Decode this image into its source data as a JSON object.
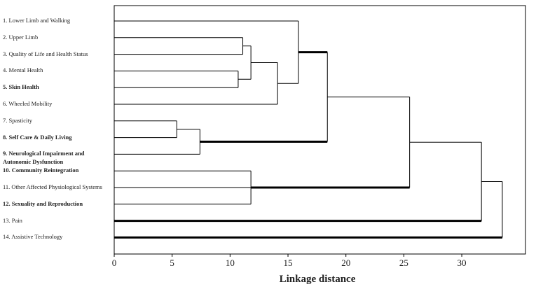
{
  "chart_data": {
    "type": "dendrogram",
    "x_label": "Linkage distance",
    "xlim": [
      0,
      35.5
    ],
    "xticks": [
      0,
      5,
      10,
      15,
      20,
      25,
      30
    ],
    "leaves": [
      {
        "label": "1. Lower Limb and Walking",
        "bold": false
      },
      {
        "label": "2. Upper Limb",
        "bold": false
      },
      {
        "label": "3. Quality of Life and Health Status",
        "bold": false
      },
      {
        "label": "4. Mental Health",
        "bold": false
      },
      {
        "label": "5. Skin Health",
        "bold": true
      },
      {
        "label": "6. Wheeled Mobility",
        "bold": false
      },
      {
        "label": "7. Spasticity",
        "bold": false
      },
      {
        "label": "8. Self Care & Daily Living",
        "bold": true
      },
      {
        "label": "9. Neurological Impairment and Autonomic Dysfunction",
        "bold": true
      },
      {
        "label": "10. Community Reintegration",
        "bold": true
      },
      {
        "label": "11. Other Affected Physiological Systems",
        "bold": false
      },
      {
        "label": "12. Sexuality and Reproduction",
        "bold": true
      },
      {
        "label": "13. Pain",
        "bold": false
      },
      {
        "label": "14. Assistive Technology",
        "bold": false
      }
    ],
    "merges": [
      {
        "children": [
          1,
          2
        ],
        "height": 11.1
      },
      {
        "children": [
          3,
          4
        ],
        "height": 10.7
      },
      {
        "children": [
          14,
          15
        ],
        "height": 11.8
      },
      {
        "children": [
          16,
          5
        ],
        "height": 14.1
      },
      {
        "children": [
          0,
          17
        ],
        "height": 15.9
      },
      {
        "children": [
          6,
          7
        ],
        "height": 5.4
      },
      {
        "children": [
          19,
          8
        ],
        "height": 7.4
      },
      {
        "children": [
          18,
          20
        ],
        "height": 18.4
      },
      {
        "children": [
          9,
          10,
          11
        ],
        "height": 11.8
      },
      {
        "children": [
          21,
          22
        ],
        "height": 25.5
      },
      {
        "children": [
          23,
          12
        ],
        "height": 31.7
      },
      {
        "children": [
          24,
          13
        ],
        "height": 33.5
      }
    ],
    "bold_links": [
      18,
      20,
      22,
      12,
      13
    ],
    "color": "#000000"
  }
}
